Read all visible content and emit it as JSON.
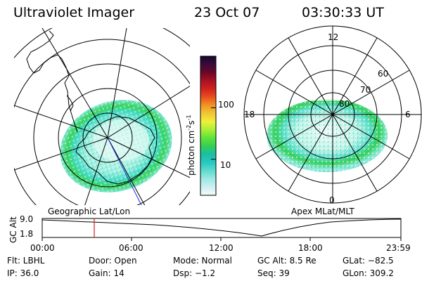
{
  "header": {
    "title": "Ultraviolet Imager",
    "date": "23 Oct 07",
    "time": "03:30:33 UT"
  },
  "colors": {
    "background": "#ffffff",
    "aurora_cyan": "#3fe6c8",
    "aurora_green": "#33d63d",
    "aurora_pale": "#bff6ec",
    "marker_red": "#d21e1e",
    "track_blue": "#1d2fd6"
  },
  "geo_panel": {
    "label": "Geographic Lat/Lon"
  },
  "colorbar": {
    "unit_main": "photon cm",
    "unit_sup1": "-2",
    "unit_s": "s",
    "unit_sup2": "-1",
    "ticks": [
      {
        "value": 100,
        "label": "100"
      },
      {
        "value": 10,
        "label": "10"
      }
    ],
    "range": [
      2,
      1000
    ],
    "scale": "log",
    "stops": [
      "#f6fcfc",
      "#cdeff2",
      "#9ee8e6",
      "#5fdccc",
      "#28c8c0",
      "#1bbfa4",
      "#34cf57",
      "#5fe23a",
      "#a8ef36",
      "#eef03a",
      "#f2c634",
      "#f39325",
      "#e8501e",
      "#d2211f",
      "#a81222",
      "#6a0824",
      "#3b0a3a",
      "#14082e"
    ]
  },
  "mag_panel": {
    "label": "Apex MLat/MLT",
    "mlt_labels": {
      "top": "12",
      "left": "18",
      "right": "6",
      "bottom": "0"
    },
    "lat_labels": [
      "60",
      "70",
      "80"
    ]
  },
  "timeline": {
    "axis_label": "GC Alt",
    "y_ticks": [
      "9.0",
      "1.8"
    ],
    "x_ticks": [
      "00:00",
      "06:00",
      "12:00",
      "18:00",
      "23:59"
    ],
    "marker_time": "03:30:33"
  },
  "status": {
    "flt": "Flt: LBHL",
    "ip": "IP: 36.0",
    "door": "Door: Open",
    "gain": "Gain: 14",
    "mode": "Mode: Normal",
    "dsp": "Dsp:  −1.2",
    "gc_alt": "GC Alt: 8.5 Re",
    "seq": "Seq: 39",
    "glat": "GLat: −82.5",
    "glon": "GLon: 309.2"
  }
}
